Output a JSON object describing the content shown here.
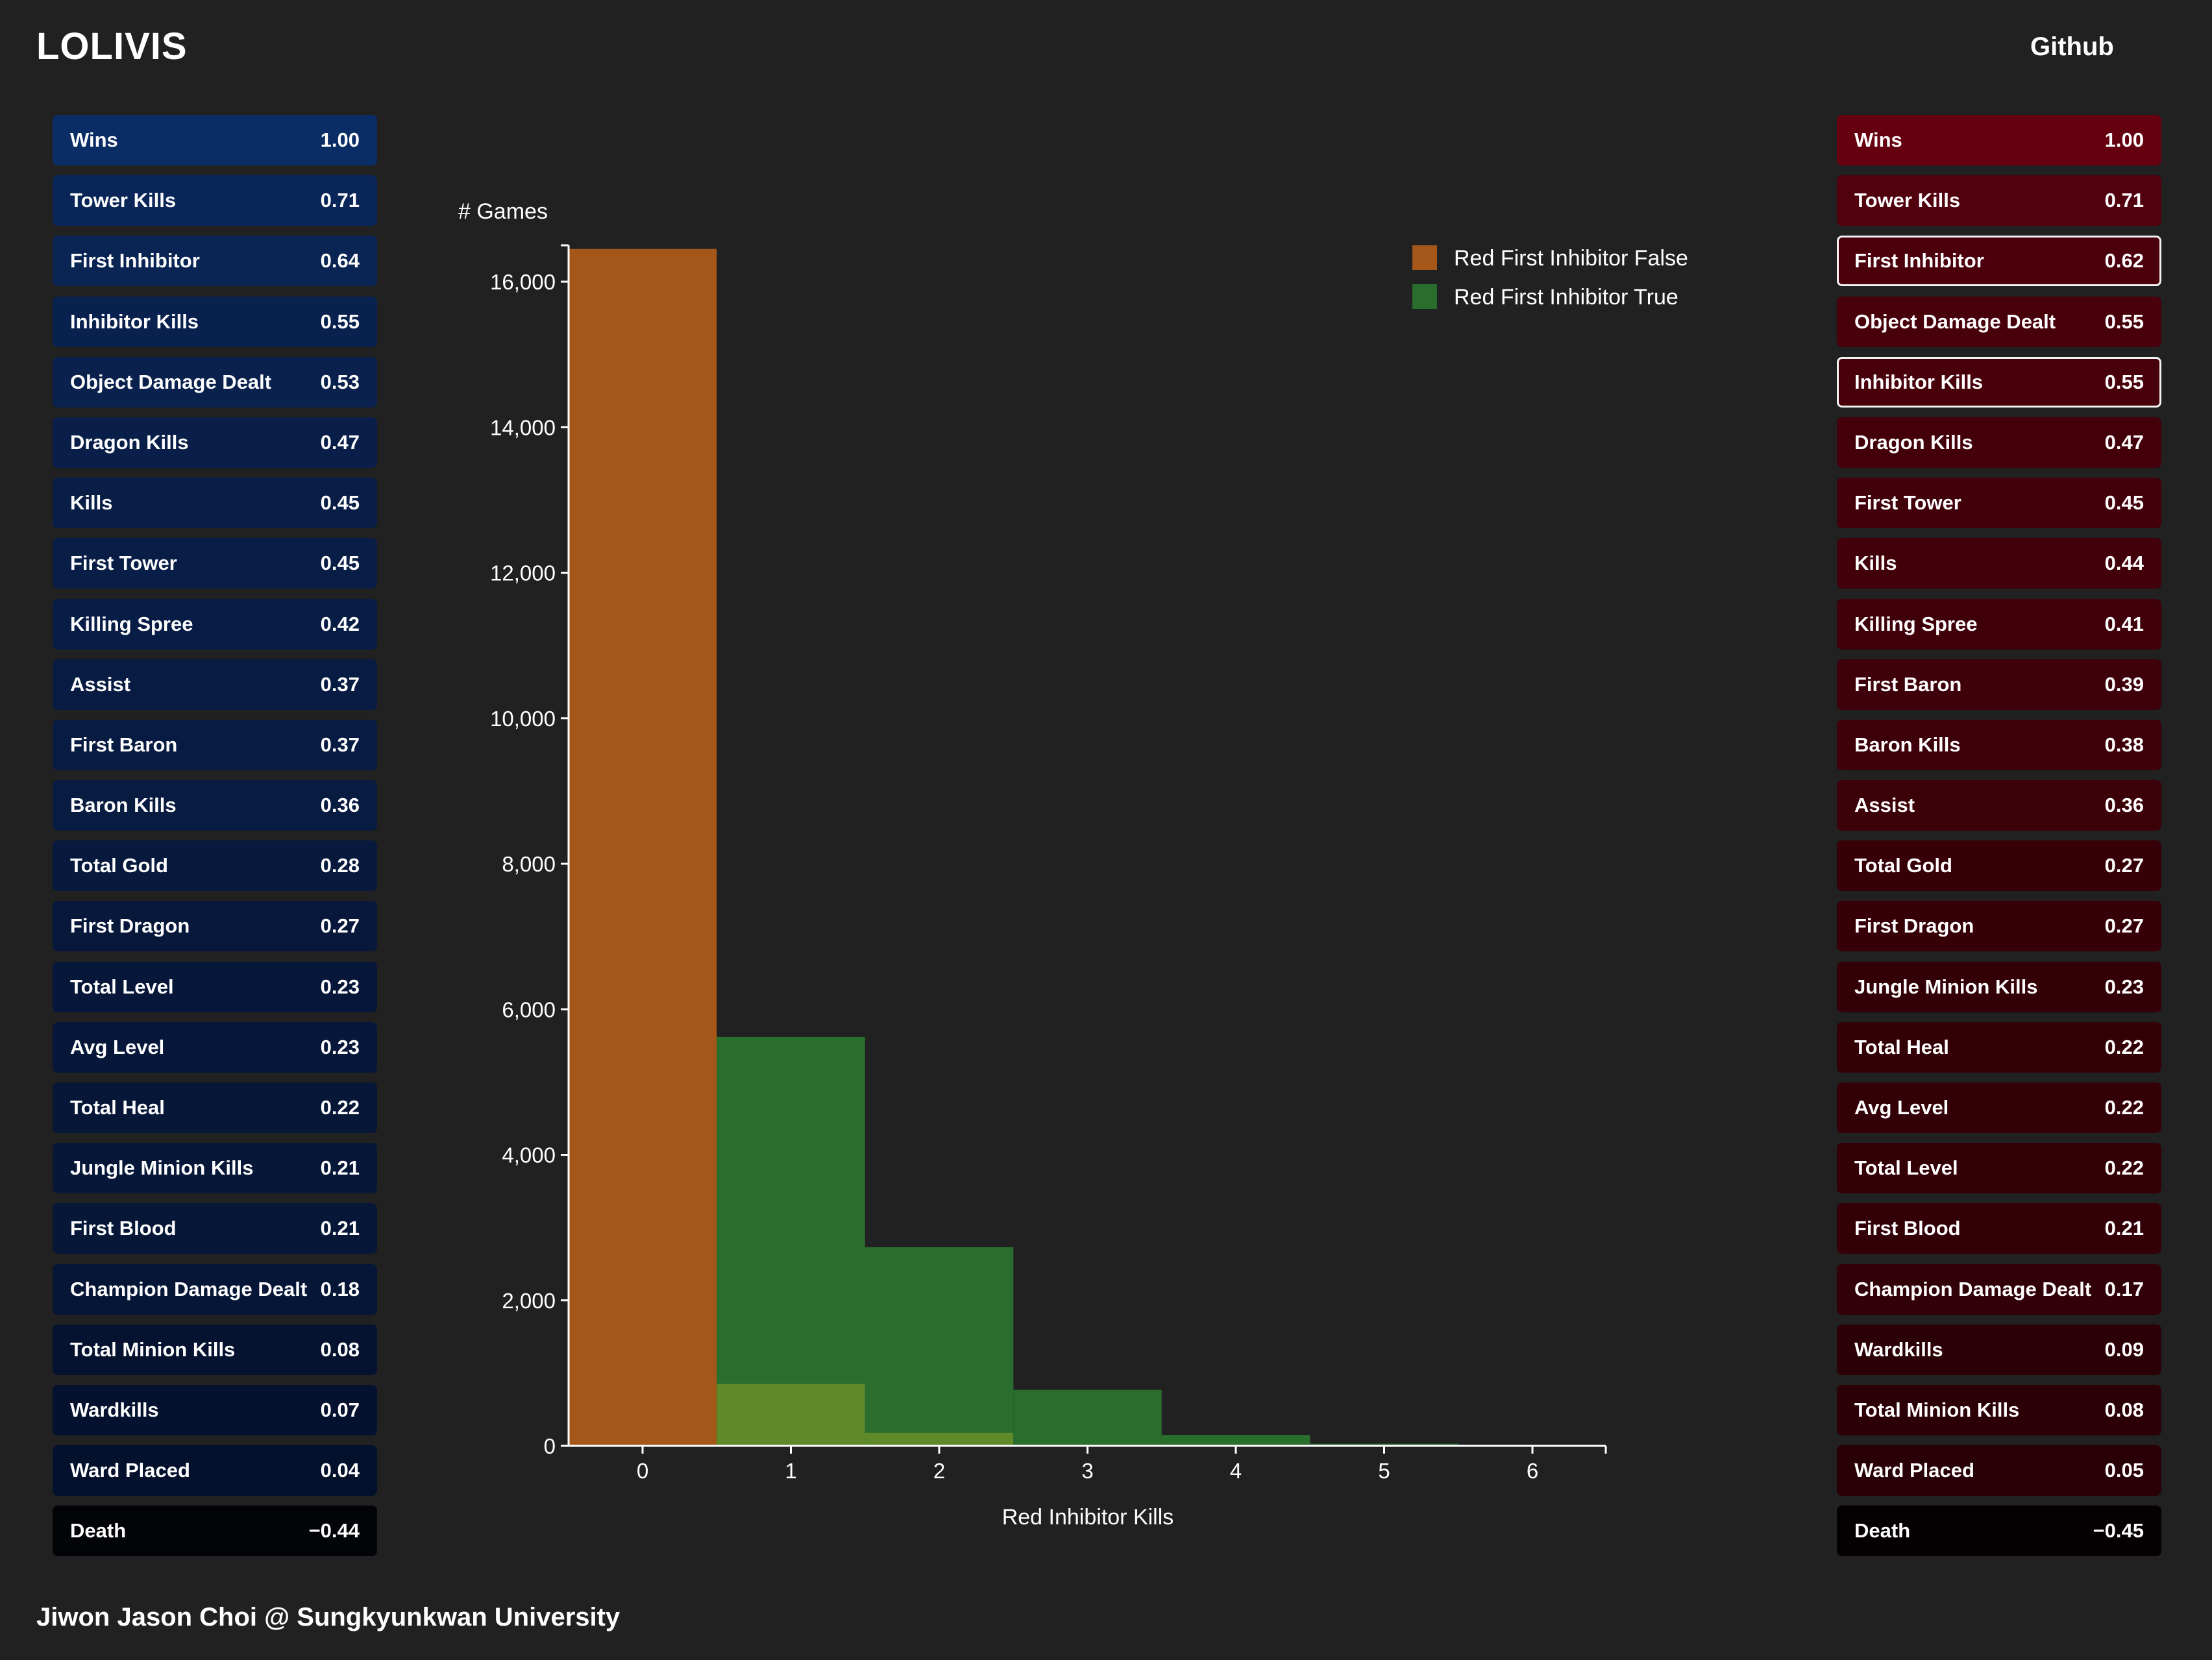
{
  "app": {
    "title": "LOLIVIS",
    "github_label": "Github",
    "footer": "Jiwon Jason Choi @ Sungkyunkwan University"
  },
  "blue_panel": {
    "items": [
      {
        "label": "Wins",
        "value": "1.00",
        "color": "#0b2d66"
      },
      {
        "label": "Tower Kills",
        "value": "0.71",
        "color": "#0a2658"
      },
      {
        "label": "First Inhibitor",
        "value": "0.64",
        "color": "#0a2453"
      },
      {
        "label": "Inhibitor Kills",
        "value": "0.55",
        "color": "#09214e"
      },
      {
        "label": "Object Damage Dealt",
        "value": "0.53",
        "color": "#09214c"
      },
      {
        "label": "Dragon Kills",
        "value": "0.47",
        "color": "#091f49"
      },
      {
        "label": "Kills",
        "value": "0.45",
        "color": "#091e47"
      },
      {
        "label": "First Tower",
        "value": "0.45",
        "color": "#091e47"
      },
      {
        "label": "Killing Spree",
        "value": "0.42",
        "color": "#081d45"
      },
      {
        "label": "Assist",
        "value": "0.37",
        "color": "#081b42"
      },
      {
        "label": "First Baron",
        "value": "0.37",
        "color": "#081b42"
      },
      {
        "label": "Baron Kills",
        "value": "0.36",
        "color": "#081b41"
      },
      {
        "label": "Total Gold",
        "value": "0.28",
        "color": "#07193c"
      },
      {
        "label": "First Dragon",
        "value": "0.27",
        "color": "#07183b"
      },
      {
        "label": "Total Level",
        "value": "0.23",
        "color": "#071739"
      },
      {
        "label": "Avg Level",
        "value": "0.23",
        "color": "#071739"
      },
      {
        "label": "Total Heal",
        "value": "0.22",
        "color": "#061738"
      },
      {
        "label": "Jungle Minion Kills",
        "value": "0.21",
        "color": "#061738"
      },
      {
        "label": "First Blood",
        "value": "0.21",
        "color": "#061738"
      },
      {
        "label": "Champion Damage Dealt",
        "value": "0.18",
        "color": "#061636"
      },
      {
        "label": "Total Minion Kills",
        "value": "0.08",
        "color": "#051330"
      },
      {
        "label": "Wardkills",
        "value": "0.07",
        "color": "#05122f"
      },
      {
        "label": "Ward Placed",
        "value": "0.04",
        "color": "#04112d"
      },
      {
        "label": "Death",
        "value": "−0.44",
        "color": "#020408"
      }
    ]
  },
  "red_panel": {
    "items": [
      {
        "label": "Wins",
        "value": "1.00",
        "color": "#650010",
        "selected": false
      },
      {
        "label": "Tower Kills",
        "value": "0.71",
        "color": "#51000d",
        "selected": false
      },
      {
        "label": "First Inhibitor",
        "value": "0.62",
        "color": "#4c000c",
        "selected": true
      },
      {
        "label": "Object Damage Dealt",
        "value": "0.55",
        "color": "#48000b",
        "selected": false
      },
      {
        "label": "Inhibitor Kills",
        "value": "0.55",
        "color": "#48000b",
        "selected": true
      },
      {
        "label": "Dragon Kills",
        "value": "0.47",
        "color": "#43000b",
        "selected": false
      },
      {
        "label": "First Tower",
        "value": "0.45",
        "color": "#42000a",
        "selected": false
      },
      {
        "label": "Kills",
        "value": "0.44",
        "color": "#41000a",
        "selected": false
      },
      {
        "label": "Killing Spree",
        "value": "0.41",
        "color": "#3f000a",
        "selected": false
      },
      {
        "label": "First Baron",
        "value": "0.39",
        "color": "#3e000a",
        "selected": false
      },
      {
        "label": "Baron Kills",
        "value": "0.38",
        "color": "#3d000a",
        "selected": false
      },
      {
        "label": "Assist",
        "value": "0.36",
        "color": "#3c0009",
        "selected": false
      },
      {
        "label": "Total Gold",
        "value": "0.27",
        "color": "#370009",
        "selected": false
      },
      {
        "label": "First Dragon",
        "value": "0.27",
        "color": "#370009",
        "selected": false
      },
      {
        "label": "Jungle Minion Kills",
        "value": "0.23",
        "color": "#340008",
        "selected": false
      },
      {
        "label": "Total Heal",
        "value": "0.22",
        "color": "#340008",
        "selected": false
      },
      {
        "label": "Avg Level",
        "value": "0.22",
        "color": "#340008",
        "selected": false
      },
      {
        "label": "Total Level",
        "value": "0.22",
        "color": "#340008",
        "selected": false
      },
      {
        "label": "First Blood",
        "value": "0.21",
        "color": "#330008",
        "selected": false
      },
      {
        "label": "Champion Damage Dealt",
        "value": "0.17",
        "color": "#310008",
        "selected": false
      },
      {
        "label": "Wardkills",
        "value": "0.09",
        "color": "#2c0007",
        "selected": false
      },
      {
        "label": "Total Minion Kills",
        "value": "0.08",
        "color": "#2b0007",
        "selected": false
      },
      {
        "label": "Ward Placed",
        "value": "0.05",
        "color": "#290007",
        "selected": false
      },
      {
        "label": "Death",
        "value": "−0.45",
        "color": "#050001",
        "selected": false
      }
    ]
  },
  "chart_data": {
    "type": "bar",
    "title": "",
    "xlabel": "Red Inhibitor Kills",
    "ylabel": "# Games",
    "categories": [
      "0",
      "1",
      "2",
      "3",
      "4",
      "5",
      "6"
    ],
    "x_ticks": [
      "0",
      "1",
      "2",
      "3",
      "4",
      "5",
      "6"
    ],
    "y_ticks": [
      "0",
      "2,000",
      "4,000",
      "6,000",
      "8,000",
      "10,000",
      "12,000",
      "14,000",
      "16,000"
    ],
    "ylim": [
      0,
      16500
    ],
    "bar_mode": "overlay",
    "series": [
      {
        "name": "Red First Inhibitor False",
        "color": "#a5571a",
        "values": [
          16450,
          850,
          180,
          0,
          0,
          0,
          0
        ]
      },
      {
        "name": "Red First Inhibitor True",
        "color": "#2a6e2e",
        "values": [
          0,
          5620,
          2730,
          770,
          150,
          30,
          5
        ]
      }
    ],
    "overlap_color": "#5e8a2a",
    "legend_position": "top-right",
    "grid": false
  }
}
